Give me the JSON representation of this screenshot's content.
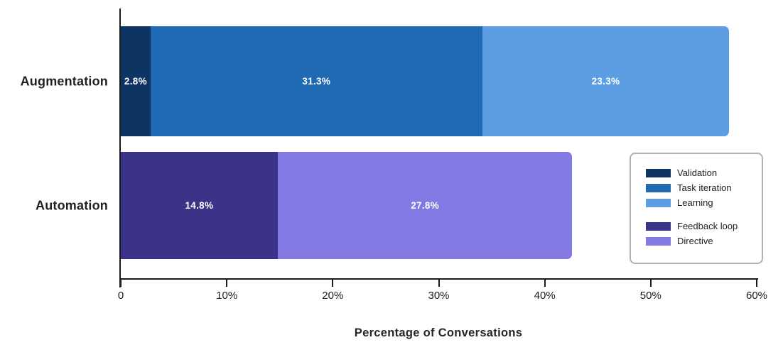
{
  "chart_data": {
    "type": "bar",
    "orientation": "horizontal",
    "stacked": true,
    "title": "",
    "xlabel": "Percentage of Conversations",
    "ylabel": "",
    "xlim": [
      0,
      60
    ],
    "grid": false,
    "legend_position": "right-middle",
    "categories": [
      "Augmentation",
      "Automation"
    ],
    "xticks": [
      {
        "value": 0,
        "label": "0"
      },
      {
        "value": 10,
        "label": "10%"
      },
      {
        "value": 20,
        "label": "20%"
      },
      {
        "value": 30,
        "label": "30%"
      },
      {
        "value": 40,
        "label": "40%"
      },
      {
        "value": 50,
        "label": "50%"
      },
      {
        "value": 60,
        "label": "60%"
      }
    ],
    "bars": [
      {
        "category": "Augmentation",
        "total": 57.4,
        "segments": [
          {
            "name": "Validation",
            "value": 2.8,
            "label": "2.8%",
            "color": "#0d3462"
          },
          {
            "name": "Task iteration",
            "value": 31.3,
            "label": "31.3%",
            "color": "#2069b3"
          },
          {
            "name": "Learning",
            "value": 23.3,
            "label": "23.3%",
            "color": "#5c9de3"
          }
        ]
      },
      {
        "category": "Automation",
        "total": 42.6,
        "segments": [
          {
            "name": "Feedback loop",
            "value": 14.8,
            "label": "14.8%",
            "color": "#3b3388"
          },
          {
            "name": "Directive",
            "value": 27.8,
            "label": "27.8%",
            "color": "#827ae2"
          }
        ]
      }
    ],
    "legend": {
      "groups": [
        [
          {
            "name": "Validation",
            "color": "#0d3462"
          },
          {
            "name": "Task iteration",
            "color": "#2069b3"
          },
          {
            "name": "Learning",
            "color": "#5c9de3"
          }
        ],
        [
          {
            "name": "Feedback loop",
            "color": "#3b3388"
          },
          {
            "name": "Directive",
            "color": "#827ae2"
          }
        ]
      ]
    }
  }
}
